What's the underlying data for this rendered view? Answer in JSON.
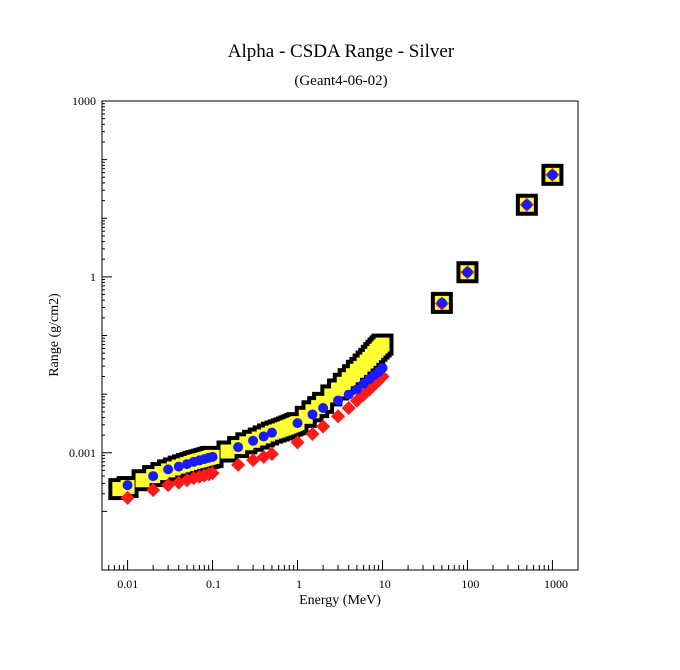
{
  "chart_data": {
    "type": "scatter",
    "title": "Alpha - CSDA Range - Silver",
    "subtitle": "(Geant4-06-02)",
    "xlabel": "Energy (MeV)",
    "ylabel": "Range (g/cm2)",
    "x_scale": "log",
    "y_scale": "log",
    "xlim": [
      0.005,
      2000
    ],
    "ylim": [
      1e-05,
      1000
    ],
    "x_tick_labels": [
      "0.01",
      "0.1",
      "1",
      "10",
      "100",
      "1000"
    ],
    "y_tick_labels": [
      "0.001",
      "1",
      "1000"
    ],
    "grid": false,
    "legend": "none",
    "colors": {
      "reference_outer": "#000000",
      "reference_inner": "#ffff33",
      "series_red": "#ff1a1a",
      "series_blue": "#1a1aff"
    },
    "series": [
      {
        "marker": "square-outline",
        "x": [
          0.008,
          0.01,
          0.015,
          0.02,
          0.025,
          0.03,
          0.035,
          0.04,
          0.045,
          0.05,
          0.055,
          0.06,
          0.065,
          0.07,
          0.075,
          0.08,
          0.085,
          0.09,
          0.095,
          0.1,
          0.15,
          0.2,
          0.25,
          0.3,
          0.35,
          0.4,
          0.45,
          0.5,
          0.55,
          0.6,
          0.65,
          0.7,
          0.75,
          0.8,
          0.85,
          0.9,
          0.95,
          1.0,
          1.25,
          1.5,
          1.75,
          2.0,
          2.5,
          3.0,
          3.5,
          4.0,
          4.5,
          5.0,
          5.5,
          6.0,
          6.5,
          7.0,
          7.5,
          8.0,
          8.5,
          9.0,
          9.5,
          10.0,
          50,
          100,
          500,
          1000
        ],
        "y": [
          0.00024,
          0.00026,
          0.00034,
          0.0004,
          0.00045,
          0.0005,
          0.00054,
          0.00058,
          0.00061,
          0.00064,
          0.00067,
          0.0007,
          0.00072,
          0.00074,
          0.00076,
          0.00078,
          0.0008,
          0.00082,
          0.00084,
          0.00085,
          0.00105,
          0.00125,
          0.00145,
          0.0016,
          0.00175,
          0.0019,
          0.00205,
          0.0022,
          0.0023,
          0.0024,
          0.0025,
          0.0026,
          0.0027,
          0.0028,
          0.0029,
          0.003,
          0.0031,
          0.0032,
          0.0041,
          0.0051,
          0.006,
          0.0071,
          0.0095,
          0.012,
          0.015,
          0.018,
          0.021,
          0.025,
          0.028,
          0.032,
          0.036,
          0.04,
          0.045,
          0.05,
          0.055,
          0.06,
          0.065,
          0.07,
          0.36,
          1.2,
          17,
          55
        ]
      },
      {
        "marker": "diamond",
        "x": [
          0.01,
          0.02,
          0.03,
          0.04,
          0.05,
          0.06,
          0.07,
          0.08,
          0.09,
          0.1,
          0.2,
          0.3,
          0.4,
          0.5,
          1.0,
          1.5,
          2.0,
          3.0,
          4.0,
          5.0,
          6.0,
          7.0,
          8.0,
          9.0,
          10.0,
          50,
          100,
          500,
          1000
        ],
        "y": [
          0.00017,
          0.00023,
          0.00028,
          0.00031,
          0.00034,
          0.00037,
          0.00039,
          0.00041,
          0.00043,
          0.00045,
          0.00062,
          0.00075,
          0.00085,
          0.00095,
          0.0015,
          0.0021,
          0.0028,
          0.0042,
          0.0058,
          0.0077,
          0.0098,
          0.012,
          0.0145,
          0.017,
          0.02,
          0.35,
          1.2,
          17,
          55
        ]
      },
      {
        "marker": "circle",
        "x": [
          0.01,
          0.02,
          0.03,
          0.04,
          0.05,
          0.06,
          0.07,
          0.08,
          0.09,
          0.1,
          0.2,
          0.3,
          0.4,
          0.5,
          1.0,
          1.5,
          2.0,
          3.0,
          4.0,
          5.0,
          6.0,
          7.0,
          8.0,
          9.0,
          10.0,
          50,
          100,
          500,
          1000
        ],
        "y": [
          0.00028,
          0.0004,
          0.00052,
          0.00058,
          0.00064,
          0.0007,
          0.00074,
          0.00078,
          0.00082,
          0.00085,
          0.00125,
          0.0016,
          0.0019,
          0.0022,
          0.0032,
          0.0045,
          0.0058,
          0.0078,
          0.0098,
          0.012,
          0.015,
          0.018,
          0.021,
          0.024,
          0.028,
          0.36,
          1.2,
          17,
          55
        ]
      }
    ]
  }
}
